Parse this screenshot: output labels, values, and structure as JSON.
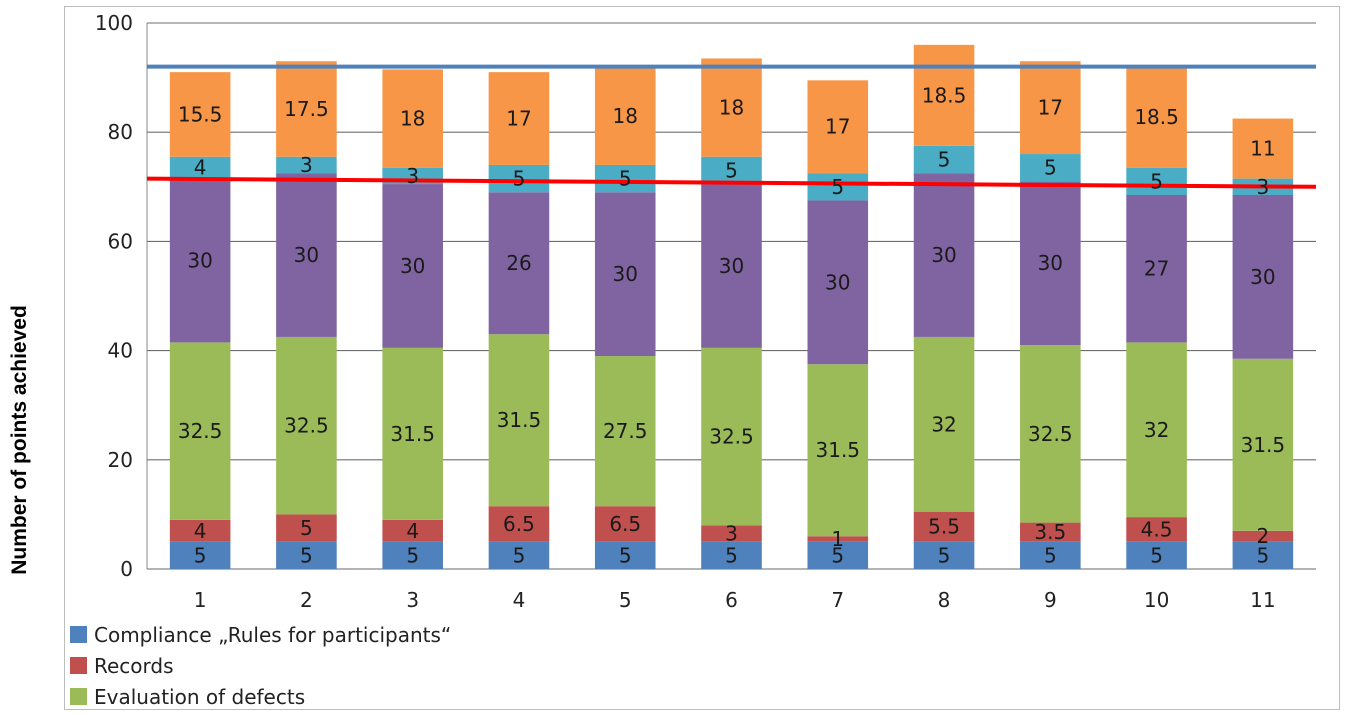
{
  "chart_data": {
    "type": "bar",
    "stacked": true,
    "categories": [
      "1",
      "2",
      "3",
      "4",
      "5",
      "6",
      "7",
      "8",
      "9",
      "10",
      "11"
    ],
    "ylabel": "Number of points achieved",
    "xlabel": "",
    "ylim": [
      0,
      100
    ],
    "yticks": [
      0,
      20,
      40,
      60,
      80,
      100
    ],
    "grid": true,
    "legend_position": "bottom-left",
    "series": [
      {
        "name": "Compliance „Rules for participants“",
        "color": "#4f81bd",
        "values": [
          5,
          5,
          5,
          5,
          5,
          5,
          5,
          5,
          5,
          5,
          5
        ],
        "labels": [
          "5",
          "5",
          "5",
          "5",
          "5",
          "5",
          "5",
          "5",
          "5",
          "5",
          "5"
        ]
      },
      {
        "name": "Records",
        "color": "#c0504d",
        "values": [
          4,
          5,
          4,
          6.5,
          6.5,
          3,
          1,
          5.5,
          3.5,
          4.5,
          2
        ],
        "labels": [
          "4",
          "5",
          "4",
          "6.5",
          "6.5",
          "3",
          "1",
          "5.5",
          "3.5",
          "4.5",
          "2"
        ]
      },
      {
        "name": "Evaluation of defects",
        "color": "#9bbb59",
        "values": [
          32.5,
          32.5,
          31.5,
          31.5,
          27.5,
          32.5,
          31.5,
          32,
          32.5,
          32,
          31.5
        ],
        "labels": [
          "32.5",
          "32.5",
          "31.5",
          "31.5",
          "27.5",
          "32.5",
          "31.5",
          "32",
          "32.5",
          "32",
          "31.5"
        ]
      },
      {
        "color": "#8064a2",
        "values": [
          30,
          30,
          30,
          26,
          30,
          30,
          30,
          30,
          30,
          27,
          30
        ],
        "labels": [
          "30",
          "30",
          "30",
          "26",
          "30",
          "30",
          "30",
          "30",
          "30",
          "27",
          "30"
        ]
      },
      {
        "color": "#4bacc6",
        "values": [
          4,
          3,
          3,
          5,
          5,
          5,
          5,
          5,
          5,
          5,
          3
        ],
        "labels": [
          "4",
          "3",
          "3",
          "5",
          "5",
          "5",
          "5",
          "5",
          "5",
          "5",
          "3"
        ]
      },
      {
        "color": "#f79646",
        "values": [
          15.5,
          17.5,
          18,
          17,
          18,
          18,
          17,
          18.5,
          17,
          18.5,
          11
        ],
        "labels": [
          "15.5",
          "17.5",
          "18",
          "17",
          "18",
          "18",
          "17",
          "18.5",
          "17",
          "18.5",
          "11"
        ]
      }
    ],
    "reference_lines": [
      {
        "color": "#4f81bd",
        "y_start": 92,
        "y_end": 92
      },
      {
        "color": "#ff0000",
        "y_start": 71.5,
        "y_end": 70
      }
    ]
  }
}
